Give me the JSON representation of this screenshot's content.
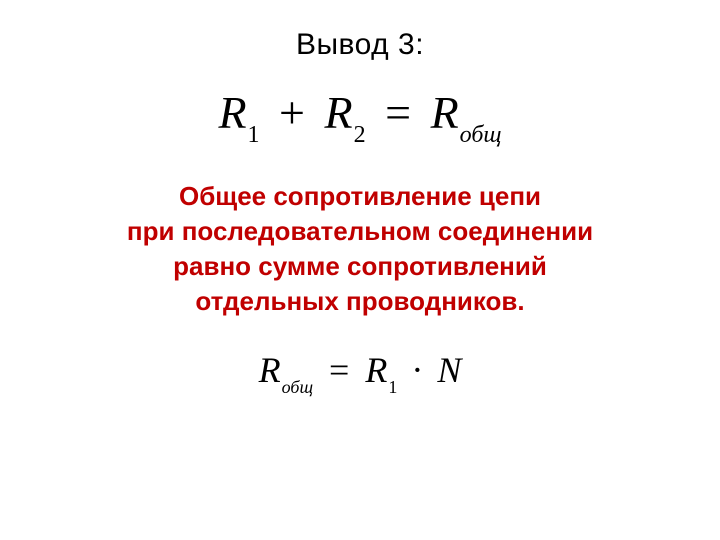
{
  "title": "Вывод 3:",
  "colors": {
    "background": "#ffffff",
    "title": "#000000",
    "formula": "#000000",
    "statement": "#c00000"
  },
  "fonts": {
    "title_size_pt": 30,
    "formula_size_pt": 46,
    "statement_size_pt": 26,
    "formula2_size_pt": 36,
    "formula_family": "Times New Roman",
    "body_family": "Arial"
  },
  "formula1": {
    "R": "R",
    "sub1": "1",
    "plus": "+",
    "sub2": "2",
    "eq": "=",
    "sub_total": "общ"
  },
  "statement": {
    "line1": "Общее сопротивление цепи",
    "line2": "при последовательном соединении",
    "line3": "равно сумме сопротивлений",
    "line4": "отдельных проводников."
  },
  "formula2": {
    "R": "R",
    "sub_total": "общ",
    "eq": "=",
    "sub1": "1",
    "dot": "·",
    "N": "N"
  }
}
